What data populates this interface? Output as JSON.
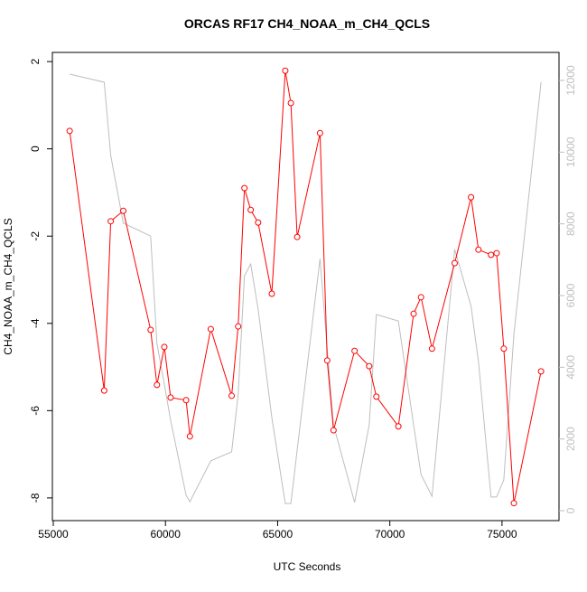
{
  "chart_data": {
    "type": "line",
    "title": "ORCAS RF17 CH4_NOAA_m_CH4_QCLS",
    "x_label": "UTC Seconds",
    "y_label": "CH4_NOAA_m_CH4_QCLS",
    "x": [
      55730,
      57270,
      57560,
      58120,
      59340,
      59620,
      59950,
      60230,
      60920,
      61090,
      62020,
      62950,
      63240,
      63520,
      63800,
      64130,
      64740,
      65340,
      65590,
      65870,
      66890,
      67210,
      67490,
      68430,
      69080,
      69400,
      70380,
      71060,
      71390,
      71880,
      72890,
      73620,
      73950,
      74510,
      74760,
      75080,
      75530,
      76740
    ],
    "series": [
      {
        "color": "#ff0000",
        "points": true,
        "values": [
          0.41,
          -5.54,
          -1.66,
          -1.42,
          -4.15,
          -5.41,
          -4.54,
          -5.7,
          -5.76,
          -6.59,
          -4.13,
          -5.66,
          -4.07,
          -0.9,
          -1.4,
          -1.69,
          -3.32,
          1.79,
          1.05,
          -2.02,
          0.36,
          -4.85,
          -6.45,
          -4.63,
          -4.98,
          -5.68,
          -6.36,
          -3.78,
          -3.4,
          -4.58,
          -2.62,
          -1.11,
          -2.31,
          -2.43,
          -2.39,
          -4.58,
          -8.12,
          -5.1
        ]
      },
      {
        "color": "#bebebe",
        "points": false,
        "axis": "y2",
        "values": [
          12175,
          11950,
          9910,
          8020,
          7660,
          4660,
          3530,
          2520,
          430,
          250,
          1390,
          1640,
          3230,
          6550,
          6880,
          5620,
          2600,
          200,
          200,
          1690,
          7030,
          4510,
          2390,
          230,
          2390,
          5470,
          5290,
          2390,
          1010,
          400,
          7290,
          5700,
          4160,
          380,
          380,
          860,
          4920,
          11950
        ]
      }
    ],
    "xlim": [
      54960,
      77540
    ],
    "xticks": [
      55000,
      60000,
      65000,
      70000,
      75000
    ],
    "ylim": [
      -8.52,
      2.21
    ],
    "yticks": [
      -8,
      -6,
      -4,
      -2,
      0,
      2
    ],
    "y2lim": [
      -277,
      12781
    ],
    "y2ticks": [
      0,
      2000,
      4000,
      6000,
      8000,
      10000,
      12000
    ]
  }
}
